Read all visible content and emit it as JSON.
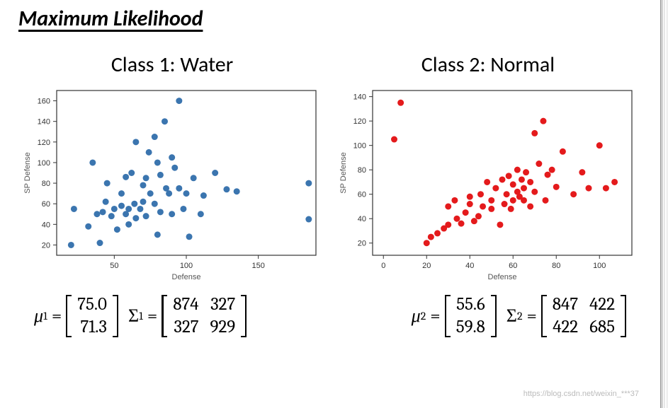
{
  "title": "Maximum Likelihood",
  "watermark": "https://blog.csdn.net/weixin_***37",
  "class1": {
    "label": "Class 1: Water",
    "chart": {
      "type": "scatter",
      "xlabel": "Defense",
      "ylabel": "SP Defense",
      "xlim": [
        10,
        190
      ],
      "ylim": [
        10,
        170
      ],
      "xticks": [
        50,
        100,
        150
      ],
      "yticks": [
        20,
        40,
        60,
        80,
        100,
        120,
        140,
        160
      ],
      "marker_color": "#3b75af",
      "marker_radius": 4.5,
      "background_color": "#ffffff",
      "axis_color": "#333333",
      "label_fontsize": 11,
      "tick_fontsize": 11,
      "points": [
        [
          20,
          20
        ],
        [
          22,
          55
        ],
        [
          32,
          38
        ],
        [
          35,
          100
        ],
        [
          38,
          50
        ],
        [
          40,
          22
        ],
        [
          42,
          52
        ],
        [
          44,
          62
        ],
        [
          45,
          80
        ],
        [
          48,
          48
        ],
        [
          50,
          55
        ],
        [
          52,
          35
        ],
        [
          55,
          70
        ],
        [
          55,
          58
        ],
        [
          58,
          50
        ],
        [
          58,
          86
        ],
        [
          60,
          40
        ],
        [
          60,
          55
        ],
        [
          62,
          90
        ],
        [
          64,
          60
        ],
        [
          65,
          46
        ],
        [
          65,
          120
        ],
        [
          68,
          55
        ],
        [
          70,
          78
        ],
        [
          70,
          62
        ],
        [
          72,
          85
        ],
        [
          72,
          48
        ],
        [
          74,
          110
        ],
        [
          75,
          70
        ],
        [
          78,
          60
        ],
        [
          78,
          125
        ],
        [
          80,
          30
        ],
        [
          80,
          100
        ],
        [
          82,
          88
        ],
        [
          82,
          52
        ],
        [
          85,
          140
        ],
        [
          86,
          75
        ],
        [
          88,
          70
        ],
        [
          90,
          105
        ],
        [
          90,
          50
        ],
        [
          92,
          95
        ],
        [
          95,
          160
        ],
        [
          95,
          75
        ],
        [
          98,
          55
        ],
        [
          100,
          70
        ],
        [
          102,
          28
        ],
        [
          105,
          85
        ],
        [
          110,
          50
        ],
        [
          112,
          68
        ],
        [
          120,
          90
        ],
        [
          128,
          74
        ],
        [
          135,
          72
        ],
        [
          185,
          80
        ],
        [
          185,
          45
        ]
      ]
    },
    "mu": [
      "75.0",
      "71.3"
    ],
    "sigma": [
      [
        "874",
        "327"
      ],
      [
        "327",
        "929"
      ]
    ]
  },
  "class2": {
    "label": "Class 2: Normal",
    "chart": {
      "type": "scatter",
      "xlabel": "Defense",
      "ylabel": "SP Defense",
      "xlim": [
        -5,
        115
      ],
      "ylim": [
        10,
        145
      ],
      "xticks": [
        0,
        20,
        40,
        60,
        80,
        100
      ],
      "yticks": [
        20,
        40,
        60,
        80,
        100,
        120,
        140
      ],
      "marker_color": "#e41a1c",
      "marker_radius": 4.5,
      "background_color": "#ffffff",
      "axis_color": "#333333",
      "label_fontsize": 11,
      "tick_fontsize": 11,
      "points": [
        [
          5,
          105
        ],
        [
          8,
          135
        ],
        [
          20,
          20
        ],
        [
          22,
          25
        ],
        [
          25,
          28
        ],
        [
          28,
          32
        ],
        [
          30,
          50
        ],
        [
          30,
          35
        ],
        [
          33,
          55
        ],
        [
          34,
          40
        ],
        [
          36,
          36
        ],
        [
          38,
          45
        ],
        [
          40,
          52
        ],
        [
          40,
          58
        ],
        [
          42,
          38
        ],
        [
          44,
          42
        ],
        [
          45,
          60
        ],
        [
          46,
          50
        ],
        [
          48,
          70
        ],
        [
          50,
          48
        ],
        [
          50,
          55
        ],
        [
          52,
          65
        ],
        [
          54,
          35
        ],
        [
          55,
          72
        ],
        [
          56,
          52
        ],
        [
          57,
          60
        ],
        [
          58,
          75
        ],
        [
          59,
          48
        ],
        [
          60,
          55
        ],
        [
          60,
          68
        ],
        [
          62,
          62
        ],
        [
          62,
          80
        ],
        [
          63,
          58
        ],
        [
          64,
          72
        ],
        [
          65,
          65
        ],
        [
          65,
          55
        ],
        [
          66,
          78
        ],
        [
          68,
          50
        ],
        [
          68,
          70
        ],
        [
          70,
          110
        ],
        [
          70,
          62
        ],
        [
          72,
          85
        ],
        [
          74,
          120
        ],
        [
          75,
          55
        ],
        [
          76,
          76
        ],
        [
          78,
          80
        ],
        [
          80,
          66
        ],
        [
          83,
          95
        ],
        [
          88,
          60
        ],
        [
          92,
          78
        ],
        [
          95,
          65
        ],
        [
          100,
          100
        ],
        [
          103,
          65
        ],
        [
          107,
          70
        ]
      ]
    },
    "mu": [
      "55.6",
      "59.8"
    ],
    "sigma": [
      [
        "847",
        "422"
      ],
      [
        "422",
        "685"
      ]
    ]
  }
}
